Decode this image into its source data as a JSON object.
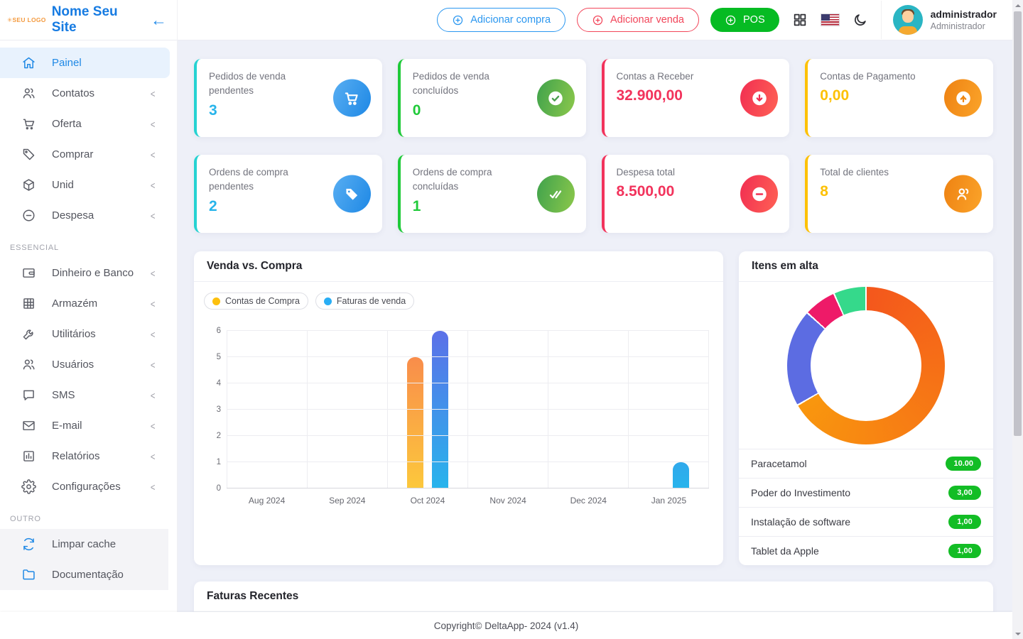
{
  "brand": {
    "logo": "SEU LOGO",
    "name": "Nome Seu Site"
  },
  "header": {
    "add_purchase": "Adicionar compra",
    "add_sale": "Adicionar venda",
    "pos": "POS",
    "user_name": "administrador",
    "user_role": "Administrador"
  },
  "sidebar": {
    "main": [
      {
        "label": "Painel"
      },
      {
        "label": "Contatos"
      },
      {
        "label": "Oferta"
      },
      {
        "label": "Comprar"
      },
      {
        "label": "Unid"
      },
      {
        "label": "Despesa"
      }
    ],
    "essential_title": "ESSENCIAL",
    "essential": [
      {
        "label": "Dinheiro e Banco"
      },
      {
        "label": "Armazém"
      },
      {
        "label": "Utilitários"
      },
      {
        "label": "Usuários"
      },
      {
        "label": "SMS"
      },
      {
        "label": "E-mail"
      },
      {
        "label": "Relatórios"
      },
      {
        "label": "Configurações"
      }
    ],
    "other_title": "OUTRO",
    "other": [
      {
        "label": "Limpar cache"
      },
      {
        "label": "Documentação"
      }
    ]
  },
  "stats": [
    {
      "label": "Pedidos de venda pendentes",
      "value": "3"
    },
    {
      "label": "Pedidos de venda concluídos",
      "value": "0"
    },
    {
      "label": "Contas a Receber",
      "value": "32.900,00"
    },
    {
      "label": "Contas de Pagamento",
      "value": "0,00"
    },
    {
      "label": "Ordens de compra pendentes",
      "value": "2"
    },
    {
      "label": "Ordens de compra concluídas",
      "value": "1"
    },
    {
      "label": "Despesa total",
      "value": "8.500,00"
    },
    {
      "label": "Total de clientes",
      "value": "8"
    }
  ],
  "chart_data": [
    {
      "type": "bar",
      "title": "Venda vs. Compra",
      "categories": [
        "Aug 2024",
        "Sep 2024",
        "Oct 2024",
        "Nov 2024",
        "Dec 2024",
        "Jan 2025"
      ],
      "series": [
        {
          "name": "Contas de Compra",
          "legend_color": "#fdc00d",
          "values": [
            0,
            0,
            5,
            0,
            0,
            0
          ]
        },
        {
          "name": "Faturas de venda",
          "legend_color": "#29aef5",
          "values": [
            0,
            0,
            6,
            0,
            0,
            1
          ]
        }
      ],
      "ylim": [
        0,
        6
      ],
      "ytick": 1,
      "grid": true,
      "legend_position": "top-left"
    },
    {
      "type": "donut",
      "title": "Itens em alta",
      "labels": [
        "Paracetamol",
        "Poder do Investimento",
        "Instalação de software",
        "Tablet da Apple"
      ],
      "values": [
        10,
        3,
        1,
        1
      ],
      "colors": [
        "#f4571c|#f9970e",
        "#5c6ce2",
        "#ee1a68",
        "#35d98b"
      ]
    }
  ],
  "trending_items": [
    {
      "name": "Paracetamol",
      "qty": "10.00"
    },
    {
      "name": "Poder do Investimento",
      "qty": "3,00"
    },
    {
      "name": "Instalação de software",
      "qty": "1,00"
    },
    {
      "name": "Tablet da Apple",
      "qty": "1,00"
    }
  ],
  "invoices": {
    "title": "Faturas Recentes"
  },
  "footer": {
    "copyright": "Copyright© DeltaApp- 2024 (v1.4)"
  },
  "colors": {
    "primary_blue": "#1e88e5",
    "pos_green": "#06bb23",
    "badge_green": "#13bd25",
    "stat_cyan": "#27b4ea",
    "stat_green": "#1fca39",
    "stat_red": "#f2335c",
    "stat_amber": "#fdc105"
  }
}
